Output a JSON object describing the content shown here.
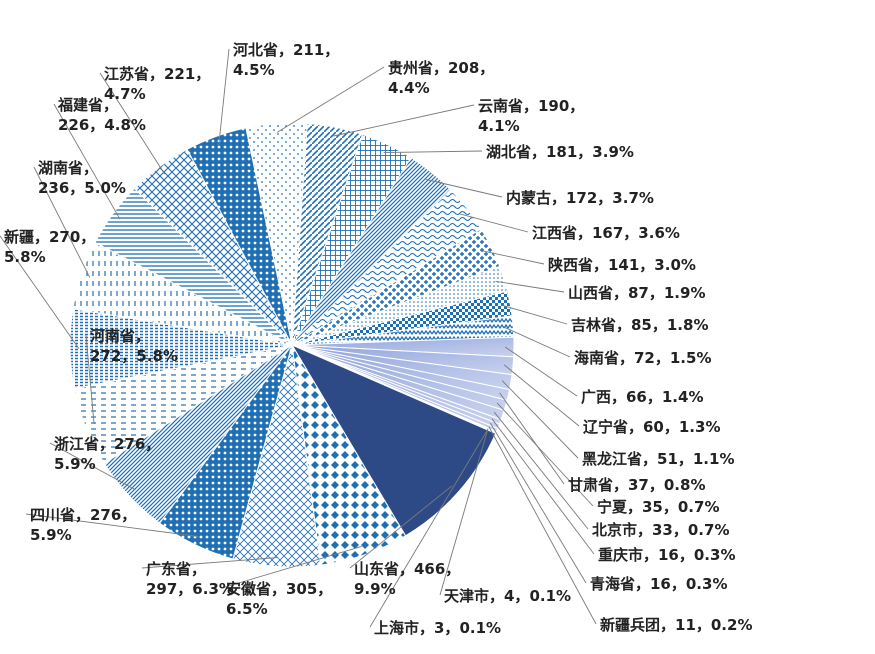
{
  "chart_data": {
    "type": "pie",
    "start_angle_deg": -12,
    "direction": "clockwise",
    "slices": [
      {
        "label": "贵州省",
        "count": 208,
        "pct": "4.4%",
        "text": [
          "贵州省，208，",
          "4.4%"
        ],
        "pattern": "dots-sparse"
      },
      {
        "label": "云南省",
        "count": 190,
        "pct": "4.1%",
        "text": [
          "云南省，190，",
          "4.1%"
        ],
        "pattern": "diag-lines"
      },
      {
        "label": "湖北省",
        "count": 181,
        "pct": "3.9%",
        "text": [
          "湖北省，181，3.9%"
        ],
        "pattern": "grid-dense"
      },
      {
        "label": "内蒙古",
        "count": 172,
        "pct": "3.7%",
        "text": [
          "内蒙古，172，3.7%"
        ],
        "pattern": "diag-fine"
      },
      {
        "label": "江西省",
        "count": 167,
        "pct": "3.6%",
        "text": [
          "江西省，167，3.6%"
        ],
        "pattern": "wave"
      },
      {
        "label": "陕西省",
        "count": 141,
        "pct": "3.0%",
        "text": [
          "陕西省，141，3.0%"
        ],
        "pattern": "weave"
      },
      {
        "label": "山西省",
        "count": 87,
        "pct": "1.9%",
        "text": [
          "山西省，87，1.9%"
        ],
        "pattern": "dots-fine"
      },
      {
        "label": "吉林省",
        "count": 85,
        "pct": "1.8%",
        "text": [
          "吉林省，85，1.8%"
        ],
        "pattern": "checker"
      },
      {
        "label": "海南省",
        "count": 72,
        "pct": "1.5%",
        "text": [
          "海南省，72，1.5%"
        ],
        "pattern": "zigzag"
      },
      {
        "label": "广西",
        "count": 66,
        "pct": "1.4%",
        "text": [
          "广西，66，1.4%"
        ],
        "pattern": "grad-light"
      },
      {
        "label": "辽宁省",
        "count": 60,
        "pct": "1.3%",
        "text": [
          "辽宁省，60，1.3%"
        ],
        "pattern": "grad-light"
      },
      {
        "label": "黑龙江省",
        "count": 51,
        "pct": "1.1%",
        "text": [
          "黑龙江省，51，1.1%"
        ],
        "pattern": "grad-light"
      },
      {
        "label": "甘肃省",
        "count": 37,
        "pct": "0.8%",
        "text": [
          "甘肃省，37，0.8%"
        ],
        "pattern": "grad-light"
      },
      {
        "label": "宁夏",
        "count": 35,
        "pct": "0.7%",
        "text": [
          "宁夏，35，0.7%"
        ],
        "pattern": "grad-light"
      },
      {
        "label": "北京市",
        "count": 33,
        "pct": "0.7%",
        "text": [
          "北京市，33，0.7%"
        ],
        "pattern": "grad-light"
      },
      {
        "label": "重庆市",
        "count": 16,
        "pct": "0.3%",
        "text": [
          "重庆市，16，0.3%"
        ],
        "pattern": "grad-light"
      },
      {
        "label": "青海省",
        "count": 16,
        "pct": "0.3%",
        "text": [
          "青海省，16，0.3%"
        ],
        "pattern": "grad-light"
      },
      {
        "label": "新疆兵团",
        "count": 11,
        "pct": "0.2%",
        "text": [
          "新疆兵团，11，0.2%"
        ],
        "pattern": "grad-light"
      },
      {
        "label": "天津市",
        "count": 4,
        "pct": "0.1%",
        "text": [
          "天津市，4，0.1%"
        ],
        "pattern": "grad-light"
      },
      {
        "label": "上海市",
        "count": 3,
        "pct": "0.1%",
        "text": [
          "上海市，3，0.1%"
        ],
        "pattern": "grad-light"
      },
      {
        "label": "山东省",
        "count": 466,
        "pct": "9.9%",
        "text": [
          "山东省，466，",
          "9.9%"
        ],
        "pattern": "solid-dark"
      },
      {
        "label": "安徽省",
        "count": 305,
        "pct": "6.5%",
        "text": [
          "安徽省，305，",
          "6.5%"
        ],
        "pattern": "diamond"
      },
      {
        "label": "广东省",
        "count": 297,
        "pct": "6.3%",
        "text": [
          "广东省，",
          "297，6.3%"
        ],
        "pattern": "grid-light"
      },
      {
        "label": "四川省",
        "count": 276,
        "pct": "5.9%",
        "text": [
          "四川省，276，",
          "5.9%"
        ],
        "pattern": "dots-dense"
      },
      {
        "label": "浙江省",
        "count": 276,
        "pct": "5.9%",
        "text": [
          "浙江省，276，",
          "5.9%"
        ],
        "pattern": "diag-fine"
      },
      {
        "label": "河南省",
        "count": 272,
        "pct": "5.8%",
        "text": [
          "河南省，",
          "272，5.8%"
        ],
        "pattern": "hdash"
      },
      {
        "label": "新疆",
        "count": 270,
        "pct": "5.8%",
        "text": [
          "新疆，270，",
          "5.8%"
        ],
        "pattern": "brick"
      },
      {
        "label": "湖南省",
        "count": 236,
        "pct": "5.0%",
        "text": [
          "湖南省，",
          "236，5.0%"
        ],
        "pattern": "vdash"
      },
      {
        "label": "福建省",
        "count": 226,
        "pct": "4.8%",
        "text": [
          "福建省，",
          "226，4.8%"
        ],
        "pattern": "hlines"
      },
      {
        "label": "江苏省",
        "count": 221,
        "pct": "4.7%",
        "text": [
          "江苏省，221，",
          "4.7%"
        ],
        "pattern": "crosshatch"
      },
      {
        "label": "河北省",
        "count": 211,
        "pct": "4.5%",
        "text": [
          "河北省，211，",
          "4.5%"
        ],
        "pattern": "dots-dense"
      }
    ],
    "colors": {
      "primary": "#1f6fb5",
      "dark": "#2e4a86",
      "light": "#c9d2ee",
      "mid": "#4a86c5"
    }
  }
}
